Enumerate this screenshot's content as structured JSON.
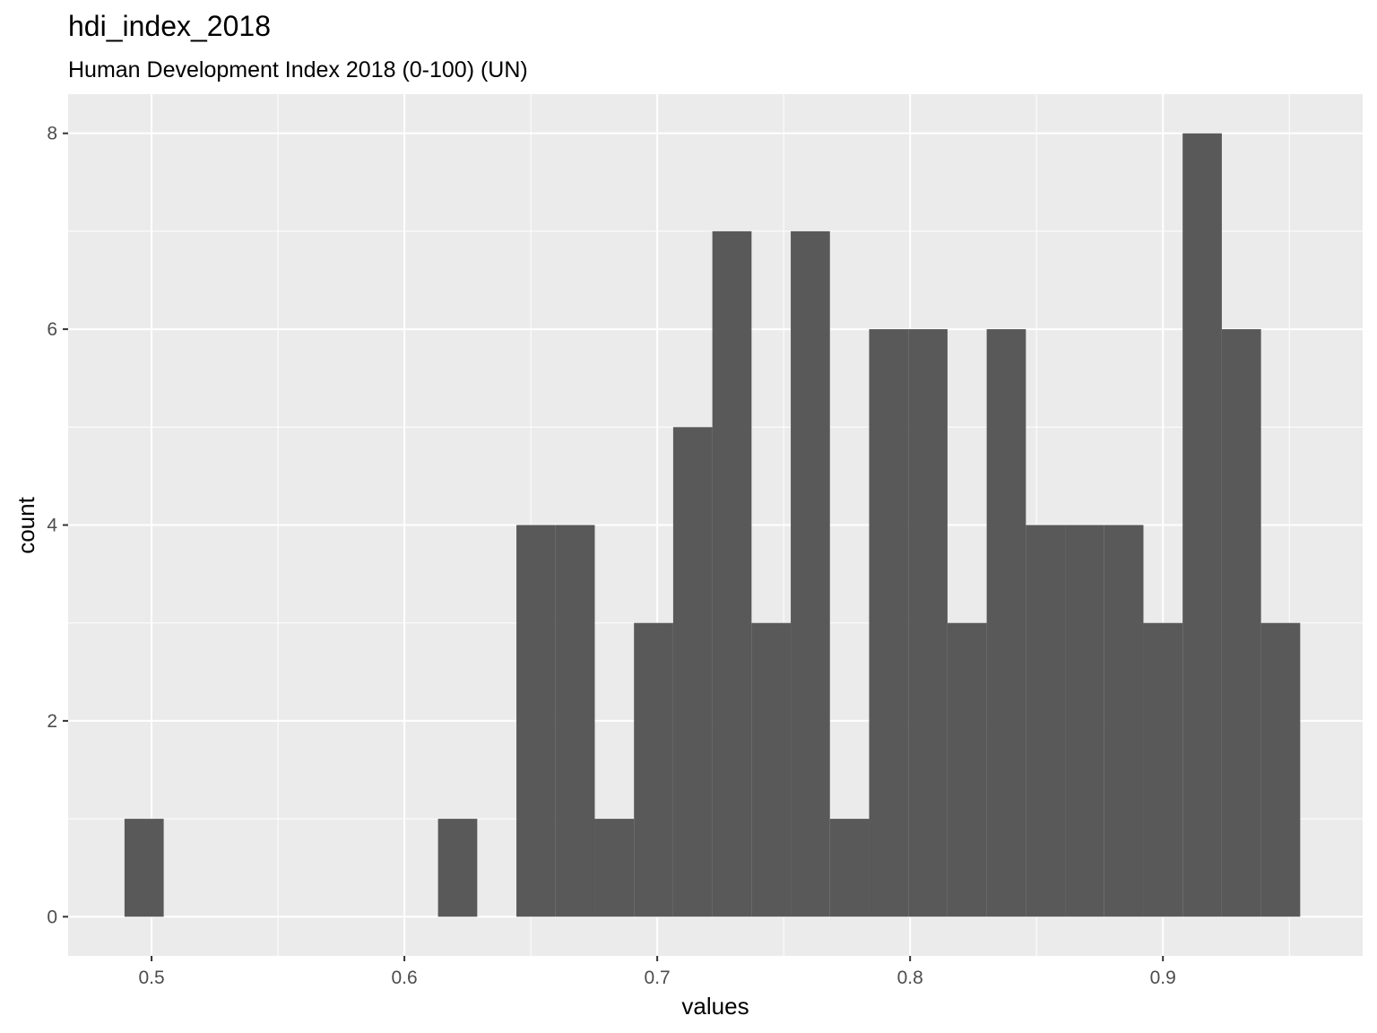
{
  "chart_data": {
    "type": "bar",
    "title": "hdi_index_2018",
    "subtitle": "Human Development Index 2018 (0-100) (UN)",
    "xlabel": "values",
    "ylabel": "count",
    "xlim": [
      0.467,
      0.979
    ],
    "ylim": [
      -0.4,
      8.4
    ],
    "x_ticks": [
      0.5,
      0.6,
      0.7,
      0.8,
      0.9
    ],
    "x_tick_labels": [
      "0.5",
      "0.6",
      "0.7",
      "0.8",
      "0.9"
    ],
    "y_ticks": [
      0,
      2,
      4,
      6,
      8
    ],
    "y_tick_labels": [
      "0",
      "2",
      "4",
      "6",
      "8"
    ],
    "bin_width": 0.0155,
    "bin_starts": [
      0.4893,
      0.5048,
      0.5203,
      0.5358,
      0.5513,
      0.5668,
      0.5823,
      0.5978,
      0.6133,
      0.6288,
      0.6443,
      0.6598,
      0.6753,
      0.6908,
      0.7063,
      0.7218,
      0.7373,
      0.7528,
      0.7683,
      0.7838,
      0.7993,
      0.8148,
      0.8303,
      0.8458,
      0.8613,
      0.8768,
      0.8923,
      0.9078,
      0.9233,
      0.9388
    ],
    "counts": [
      1,
      0,
      0,
      0,
      0,
      0,
      0,
      0,
      1,
      0,
      4,
      4,
      1,
      3,
      5,
      7,
      3,
      7,
      1,
      6,
      6,
      3,
      6,
      4,
      4,
      4,
      3,
      8,
      6,
      3
    ],
    "bar_color": "#595959",
    "panel_background": "#ebebeb",
    "grid": true,
    "grid_color": "#ffffff",
    "legend": "none"
  }
}
